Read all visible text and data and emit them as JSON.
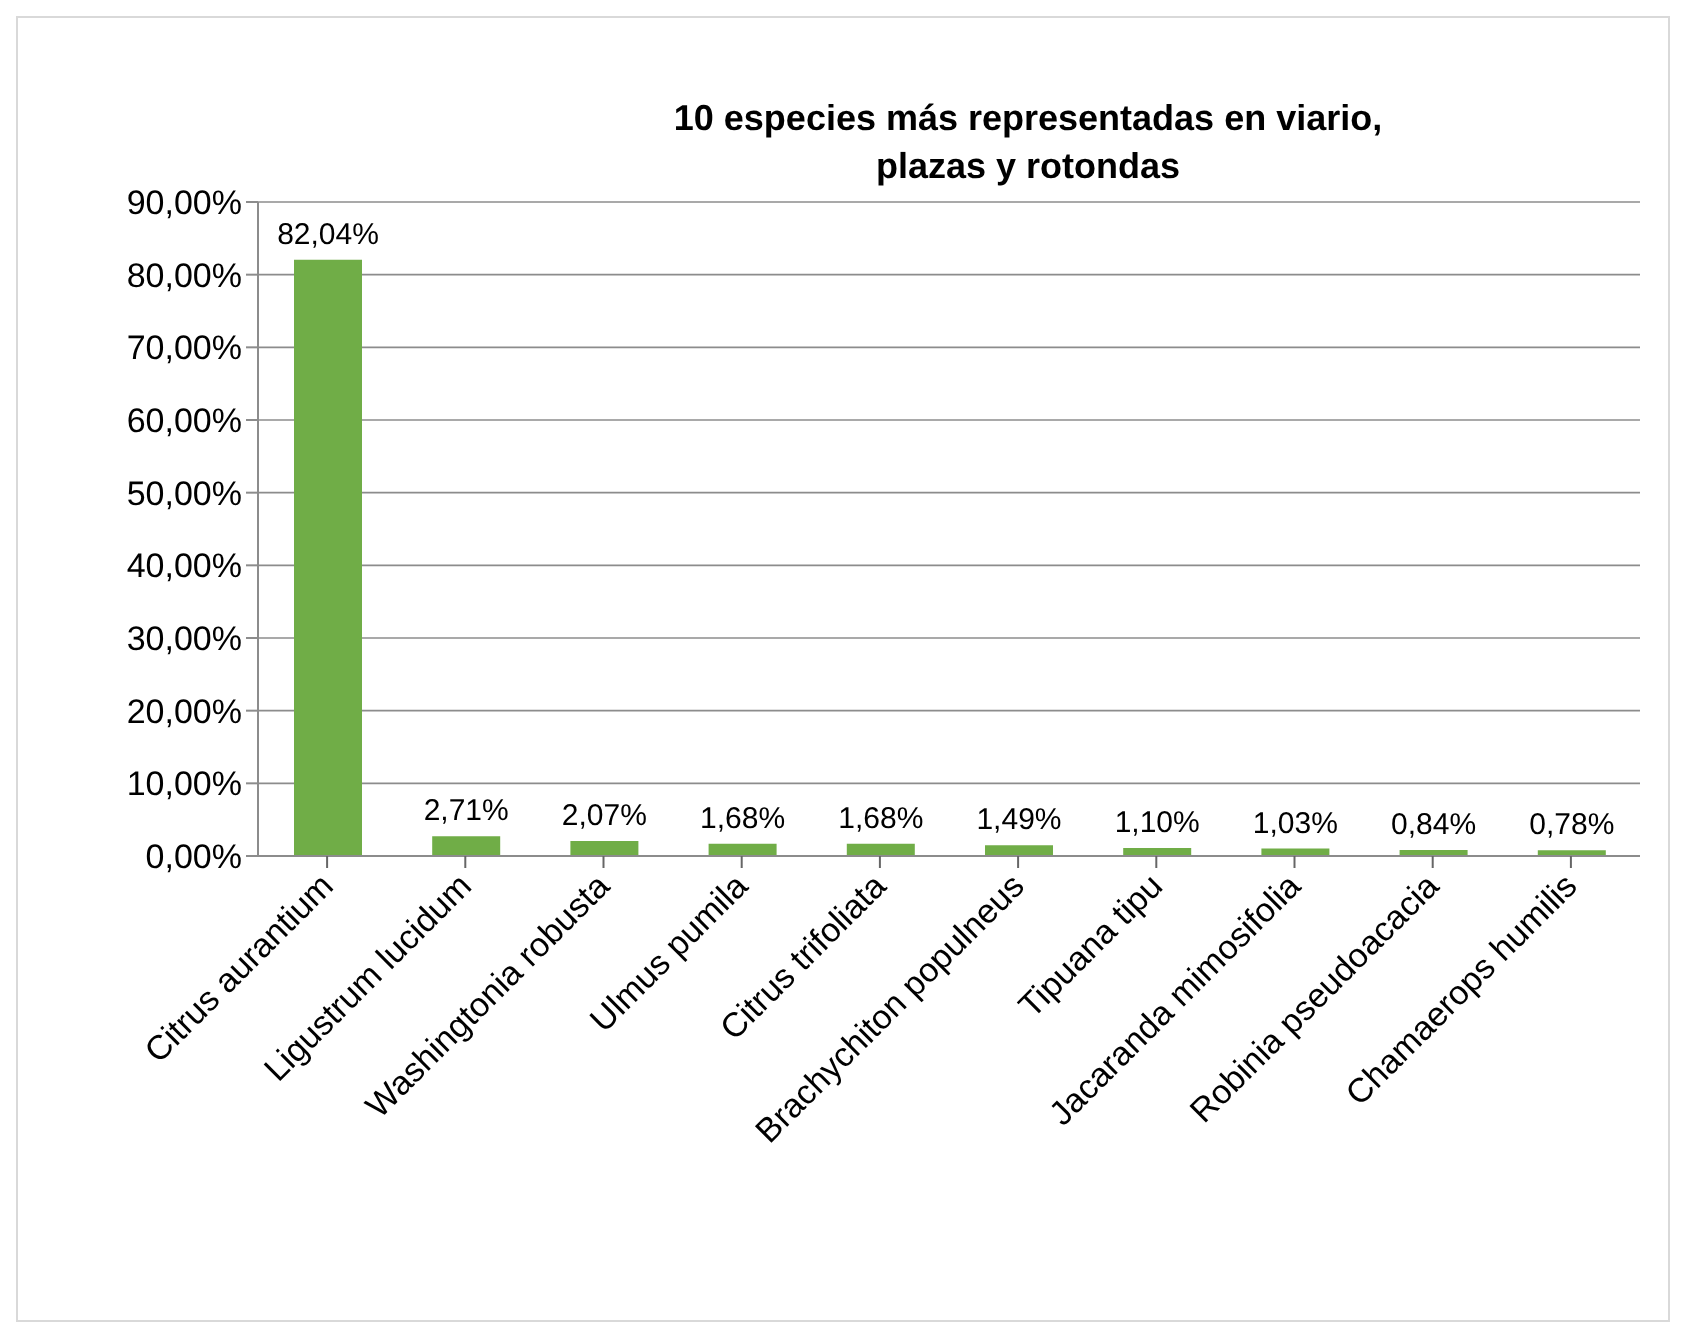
{
  "chart_data": {
    "type": "bar",
    "title": "10 especies más representadas en viario, plazas y rotondas",
    "categories": [
      "Citrus aurantium",
      "Ligustrum lucidum",
      "Washingtonia robusta",
      "Ulmus pumila",
      "Citrus trifoliata",
      "Brachychiton populneus",
      "Tipuana tipu",
      "Jacaranda mimosifolia",
      "Robinia pseudoacacia",
      "Chamaerops humilis"
    ],
    "values": [
      82.04,
      2.71,
      2.07,
      1.68,
      1.68,
      1.49,
      1.1,
      1.03,
      0.84,
      0.78
    ],
    "value_labels": [
      "82,04%",
      "2,71%",
      "2,07%",
      "1,68%",
      "1,68%",
      "1,49%",
      "1,10%",
      "1,03%",
      "0,84%",
      "0,78%"
    ],
    "color": "#70ad47",
    "ylim": [
      0,
      90
    ],
    "yticks": [
      {
        "value": 0,
        "label": "0,00%"
      },
      {
        "value": 10,
        "label": "10,00%"
      },
      {
        "value": 20,
        "label": "20,00%"
      },
      {
        "value": 30,
        "label": "30,00%"
      },
      {
        "value": 40,
        "label": "40,00%"
      },
      {
        "value": 50,
        "label": "50,00%"
      },
      {
        "value": 60,
        "label": "60,00%"
      },
      {
        "value": 70,
        "label": "70,00%"
      },
      {
        "value": 80,
        "label": "80,00%"
      },
      {
        "value": 90,
        "label": "90,00%"
      }
    ],
    "grid": "y",
    "legend": false
  }
}
